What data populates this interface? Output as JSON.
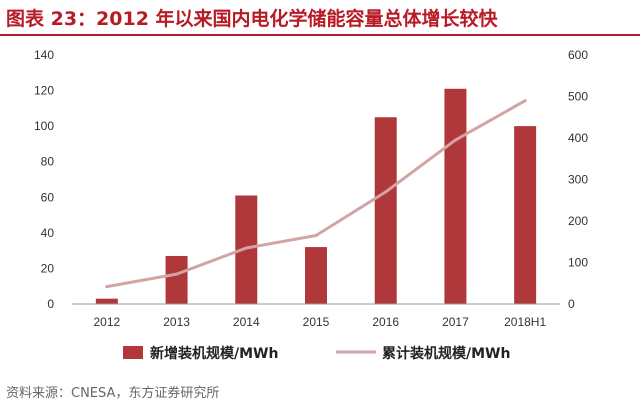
{
  "title": "图表 23：2012 年以来国内电化学储能容量总体增长较快",
  "source": "资料来源：CNESA，东方证券研究所",
  "colors": {
    "title": "#b81b26",
    "bar": "#b0373a",
    "line": "#d4a3a3"
  },
  "chart_data": {
    "type": "bar",
    "categories": [
      "2012",
      "2013",
      "2014",
      "2015",
      "2016",
      "2017",
      "2018H1"
    ],
    "series": [
      {
        "name": "新增装机规模/MWh",
        "type": "bar",
        "axis": "left",
        "values": [
          3,
          27,
          61,
          32,
          105,
          121,
          100
        ]
      },
      {
        "name": "累计装机规模/MWh",
        "type": "line",
        "axis": "right",
        "values": [
          42,
          72,
          135,
          165,
          270,
          395,
          490
        ]
      }
    ],
    "y_left": {
      "min": 0,
      "max": 140,
      "ticks": [
        "0",
        "20",
        "40",
        "60",
        "80",
        "100",
        "120",
        "140"
      ]
    },
    "y_right": {
      "min": 0,
      "max": 600,
      "ticks": [
        "0",
        "100",
        "200",
        "300",
        "400",
        "500",
        "600"
      ]
    },
    "legend_position": "bottom",
    "grid": false
  }
}
